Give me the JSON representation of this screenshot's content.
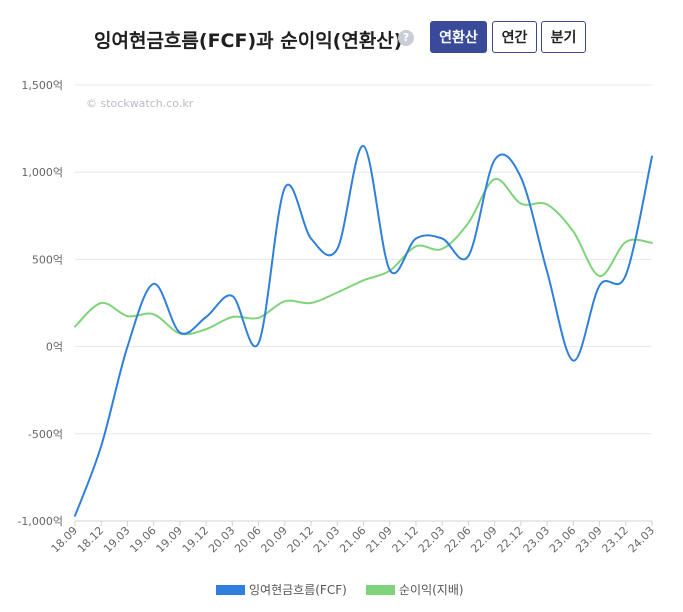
{
  "header": {
    "title": "잉여현금흐름(FCF)과 순이익(연환산)",
    "help_icon": "question-icon",
    "buttons": [
      {
        "label": "연환산",
        "active": true
      },
      {
        "label": "연간",
        "active": false
      },
      {
        "label": "분기",
        "active": false
      }
    ]
  },
  "chart_data": {
    "type": "line",
    "watermark": "© stockwatch.co.kr",
    "y_unit": "억",
    "ylim": [
      -1000,
      1500
    ],
    "yticks": [
      -1000,
      -500,
      0,
      500,
      1000,
      1500
    ],
    "ytick_labels": [
      "-1,000억",
      "-500억",
      "0억",
      "500억",
      "1,000억",
      "1,500억"
    ],
    "categories": [
      "18.09",
      "18.12",
      "19.03",
      "19.06",
      "19.09",
      "19.12",
      "20.03",
      "20.06",
      "20.09",
      "20.12",
      "21.03",
      "21.06",
      "21.09",
      "21.12",
      "22.03",
      "22.06",
      "22.09",
      "22.12",
      "23.03",
      "23.06",
      "23.09",
      "23.12",
      "24.03"
    ],
    "series": [
      {
        "name": "잉여현금흐름(FCF)",
        "color": "#2f7fdc",
        "values": [
          -970,
          -570,
          0,
          360,
          80,
          170,
          290,
          20,
          910,
          620,
          560,
          1150,
          440,
          620,
          620,
          520,
          1070,
          970,
          430,
          -80,
          350,
          410,
          1090
        ]
      },
      {
        "name": "순이익(지배)",
        "color": "#7fd37a",
        "values": [
          115,
          250,
          175,
          185,
          75,
          100,
          170,
          165,
          260,
          250,
          310,
          380,
          435,
          575,
          560,
          710,
          960,
          820,
          815,
          660,
          405,
          600,
          595
        ]
      }
    ],
    "grid": true,
    "legend": "bottom"
  }
}
